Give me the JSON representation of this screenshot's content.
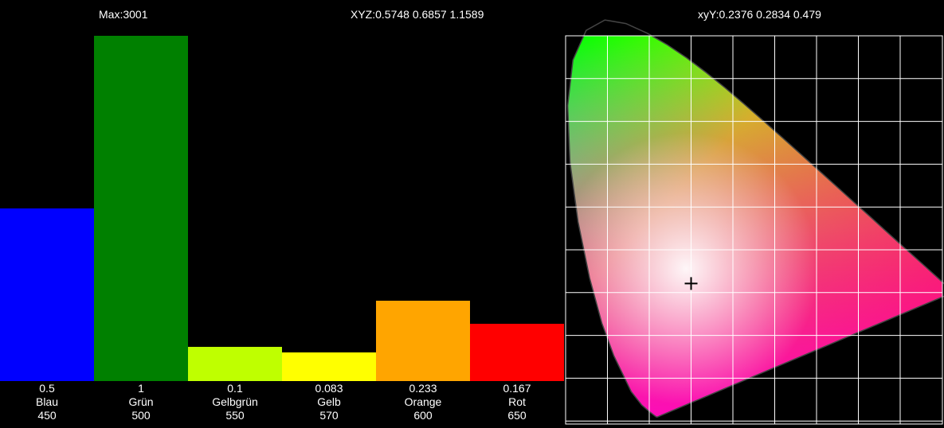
{
  "header": {
    "max": "Max:3001",
    "xyz": "XYZ:0.5748 0.6857 1.1589",
    "xyy": "xyY:0.2376 0.2834 0.479"
  },
  "chart_data": [
    {
      "type": "bar",
      "categories": [
        "Blau",
        "Grün",
        "Gelbgrün",
        "Gelb",
        "Orange",
        "Rot"
      ],
      "wavelengths": [
        "450",
        "500",
        "550",
        "570",
        "600",
        "650"
      ],
      "values": [
        0.5,
        1,
        0.1,
        0.083,
        0.233,
        0.167
      ],
      "value_labels": [
        "0.5",
        "1",
        "0.1",
        "0.083",
        "0.233",
        "0.167"
      ],
      "colors": [
        "#0000ff",
        "#008000",
        "#bfff00",
        "#ffff00",
        "#ffa500",
        "#ff0000"
      ],
      "ylim": [
        0,
        1
      ],
      "max": 3001
    },
    {
      "type": "scatter",
      "background": "CIE 1931 chromaticity diagram",
      "grid": true,
      "xlim": [
        0,
        0.8
      ],
      "ylim": [
        0,
        0.8
      ],
      "point": {
        "x": 0.2376,
        "y": 0.2834
      },
      "marker": "plus"
    }
  ]
}
